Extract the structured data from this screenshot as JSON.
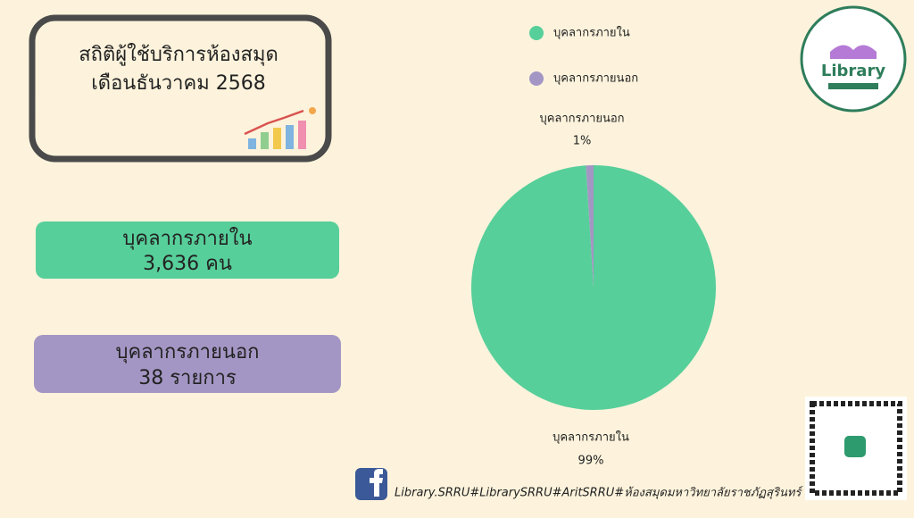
{
  "header": {
    "title_line1": "สถิติผู้ใช้บริการห้องสมุด",
    "title_line2": "เดือนธันวาคม 2568"
  },
  "cards": [
    {
      "label": "บุคลากรภายใน",
      "value": "3,636 คน"
    },
    {
      "label": "บุคลากรภายนอก",
      "value": "38 รายการ"
    }
  ],
  "logo": {
    "text": "Library"
  },
  "footer": {
    "text": "Library.SRRU#LibrarySRRU#AritSRRU#ห้องสมุดมหาวิทยาลัยราชภัฏสุรินทร์"
  },
  "chart_data": {
    "type": "pie",
    "categories": [
      "บุคลากรภายใน",
      "บุคลากรภายนอก"
    ],
    "values": [
      99,
      1
    ],
    "value_labels": [
      "99%",
      "1%"
    ],
    "colors": [
      "#57cf9a",
      "#a496c4"
    ],
    "legend": "top"
  }
}
